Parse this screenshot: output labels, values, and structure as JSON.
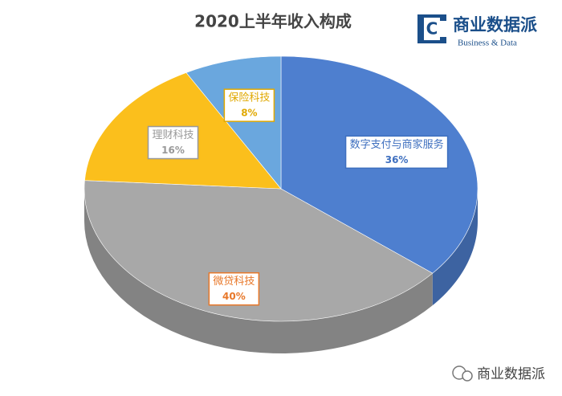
{
  "chart_data": {
    "type": "pie3d",
    "title": "2020上半年收入构成",
    "categories": [
      "数字支付与商家服务",
      "微贷科技",
      "理财科技",
      "保险科技"
    ],
    "values": [
      36,
      40,
      16,
      8
    ],
    "value_labels": [
      "36%",
      "40%",
      "16%",
      "8%"
    ],
    "colors": [
      "#4e7fcf",
      "#a8a8a8",
      "#fbbf1c",
      "#6aa7de"
    ],
    "label_colors": [
      "#3e6fbf",
      "#e8782a",
      "#999999",
      "#e0a800"
    ]
  },
  "logo": {
    "title": "商业数据派",
    "subtitle": "Business & Data"
  },
  "watermark": "商业数据派"
}
